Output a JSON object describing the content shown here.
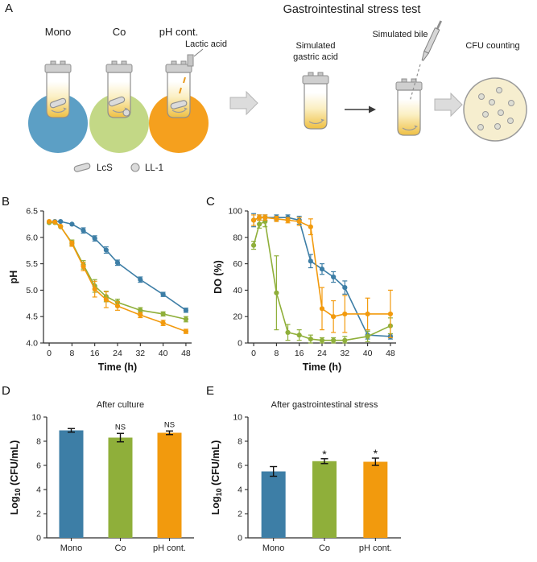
{
  "panels": {
    "a": "A",
    "b": "B",
    "c": "C",
    "d": "D",
    "e": "E"
  },
  "colors": {
    "mono": "#3D7EA6",
    "co": "#8FAF3A",
    "ph_cont": "#F29A0D",
    "mono_circle": "#5C9FC5",
    "co_circle": "#C3D886",
    "ph_circle": "#F5A01E",
    "vessel_gray": "#CFCFCF",
    "outline_gray": "#8F8F8F",
    "arrow_gray": "#DCDCDC",
    "dish_fill": "#F6EECF",
    "colony_fill": "#DEDED4"
  },
  "panelA": {
    "title": "Gastrointestinal stress test",
    "mono": "Mono",
    "co": "Co",
    "ph_cont": "pH cont.",
    "lactic_acid": "Lactic acid",
    "simulated": "Simulated",
    "gastric_acid": "gastric acid",
    "simulated_bile": "Simulated bile",
    "cfu_counting": "CFU counting",
    "legend_lcs": "LcS",
    "legend_ll1": "LL-1"
  },
  "chart_data": [
    {
      "panel": "B",
      "type": "line",
      "title": "",
      "xlabel": "Time (h)",
      "ylabel": "pH",
      "xlim": [
        -2,
        50
      ],
      "ylim": [
        4.0,
        6.5
      ],
      "xticks": [
        0,
        8,
        16,
        24,
        32,
        40,
        48
      ],
      "xticklabels": [
        "0",
        "8",
        "16",
        "24",
        "32",
        "40",
        "48"
      ],
      "yticks": [
        4.0,
        4.5,
        5.0,
        5.5,
        6.0,
        6.5
      ],
      "yticklabels": [
        "4.0",
        "4.5",
        "5.0",
        "5.5",
        "6.0",
        "6.5"
      ],
      "series": [
        {
          "name": "Mono",
          "color": "#3D7EA6",
          "x": [
            0,
            2,
            4,
            8,
            12,
            16,
            20,
            24,
            32,
            40,
            48
          ],
          "y": [
            6.28,
            6.3,
            6.3,
            6.25,
            6.13,
            5.98,
            5.76,
            5.52,
            5.2,
            4.92,
            4.62
          ],
          "err": [
            0,
            0,
            0,
            0,
            0.05,
            0.05,
            0.06,
            0.05,
            0.05,
            0.04,
            0.04
          ]
        },
        {
          "name": "Co",
          "color": "#8FAF3A",
          "x": [
            0,
            2,
            4,
            8,
            12,
            16,
            20,
            24,
            32,
            40,
            48
          ],
          "y": [
            6.28,
            6.28,
            6.2,
            5.9,
            5.48,
            5.08,
            4.88,
            4.77,
            4.62,
            4.55,
            4.45
          ],
          "err": [
            0,
            0,
            0,
            0.05,
            0.08,
            0.12,
            0.1,
            0.06,
            0.05,
            0.04,
            0.05
          ]
        },
        {
          "name": "pH cont.",
          "color": "#F29A0D",
          "x": [
            0,
            2,
            4,
            8,
            12,
            16,
            20,
            24,
            32,
            40,
            48
          ],
          "y": [
            6.3,
            6.29,
            6.21,
            5.88,
            5.45,
            5.02,
            4.82,
            4.7,
            4.53,
            4.38,
            4.22
          ],
          "err": [
            0,
            0,
            0,
            0.05,
            0.08,
            0.15,
            0.15,
            0.08,
            0.05,
            0.05,
            0.04
          ]
        }
      ]
    },
    {
      "panel": "C",
      "type": "line",
      "title": "",
      "xlabel": "Time (h)",
      "ylabel": "DO (%)",
      "xlim": [
        -2,
        50
      ],
      "ylim": [
        0,
        100
      ],
      "xticks": [
        0,
        8,
        16,
        24,
        32,
        40,
        48
      ],
      "xticklabels": [
        "0",
        "8",
        "16",
        "24",
        "32",
        "40",
        "48"
      ],
      "yticks": [
        0,
        20,
        40,
        60,
        80,
        100
      ],
      "yticklabels": [
        "0",
        "20",
        "40",
        "60",
        "80",
        "100"
      ],
      "series": [
        {
          "name": "Mono",
          "color": "#3D7EA6",
          "x": [
            0,
            2,
            4,
            8,
            12,
            16,
            20,
            24,
            28,
            32,
            40,
            48
          ],
          "y": [
            93,
            95,
            95,
            95,
            95,
            93,
            62,
            56,
            50,
            42,
            6,
            5
          ],
          "err": [
            5,
            2,
            2,
            2,
            2,
            3,
            5,
            4,
            4,
            5,
            3,
            2
          ]
        },
        {
          "name": "Co",
          "color": "#8FAF3A",
          "x": [
            0,
            2,
            4,
            8,
            12,
            16,
            20,
            24,
            28,
            32,
            40,
            48
          ],
          "y": [
            74,
            90,
            92,
            38,
            8,
            6,
            3,
            2,
            2,
            2,
            5,
            13
          ],
          "err": [
            3,
            3,
            4,
            28,
            6,
            4,
            3,
            2,
            2,
            3,
            4,
            6
          ]
        },
        {
          "name": "pH cont.",
          "color": "#F29A0D",
          "x": [
            0,
            2,
            4,
            8,
            12,
            16,
            20,
            24,
            28,
            32,
            40,
            48
          ],
          "y": [
            93,
            95,
            95,
            94,
            93,
            92,
            88,
            26,
            20,
            22,
            22,
            22
          ],
          "err": [
            4,
            2,
            2,
            2,
            2,
            3,
            6,
            16,
            12,
            14,
            12,
            18
          ]
        }
      ]
    },
    {
      "panel": "D",
      "type": "bar",
      "title": "After culture",
      "ylabel": "Log10 (CFU/mL)",
      "ylabel_parts": {
        "pre": "Log",
        "sub": "10",
        "post": " (CFU/mL)"
      },
      "categories": [
        "Mono",
        "Co",
        "pH cont."
      ],
      "values": [
        8.9,
        8.3,
        8.7
      ],
      "errors": [
        0.15,
        0.35,
        0.15
      ],
      "annotations": [
        "",
        "NS",
        "NS"
      ],
      "bar_colors": [
        "#3D7EA6",
        "#8FAF3A",
        "#F29A0D"
      ],
      "ylim": [
        0,
        10
      ],
      "yticks": [
        0,
        2,
        4,
        6,
        8,
        10
      ],
      "yticklabels": [
        "0",
        "2",
        "4",
        "6",
        "8",
        "10"
      ]
    },
    {
      "panel": "E",
      "type": "bar",
      "title": "After gastrointestinal stress",
      "ylabel": "Log10 (CFU/mL)",
      "ylabel_parts": {
        "pre": "Log",
        "sub": "10",
        "post": " (CFU/mL)"
      },
      "categories": [
        "Mono",
        "Co",
        "pH cont."
      ],
      "values": [
        5.5,
        6.35,
        6.3
      ],
      "errors": [
        0.4,
        0.2,
        0.3
      ],
      "annotations": [
        "",
        "*",
        "*"
      ],
      "bar_colors": [
        "#3D7EA6",
        "#8FAF3A",
        "#F29A0D"
      ],
      "ylim": [
        0,
        10
      ],
      "yticks": [
        0,
        2,
        4,
        6,
        8,
        10
      ],
      "yticklabels": [
        "0",
        "2",
        "4",
        "6",
        "8",
        "10"
      ]
    }
  ]
}
